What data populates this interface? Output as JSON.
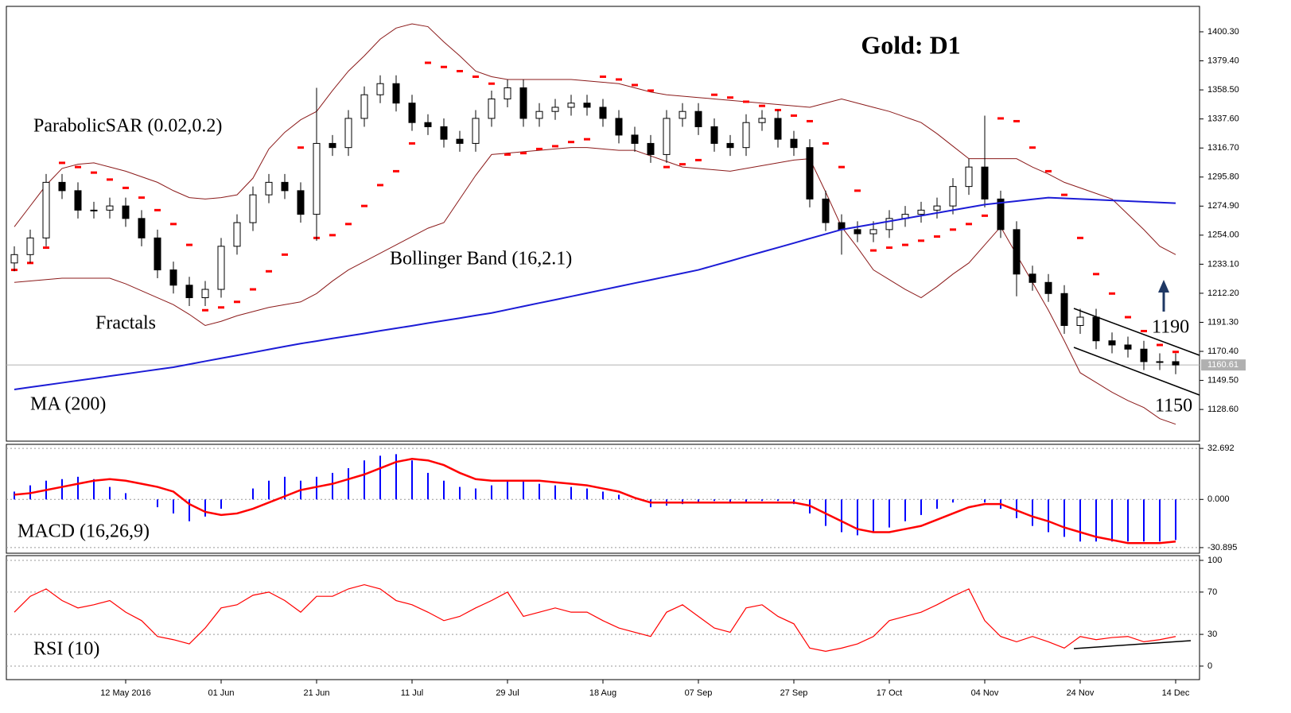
{
  "chart_data": [
    {
      "type": "candlestick",
      "title": "Gold: D1",
      "categories": [
        null,
        null,
        null,
        null,
        null,
        null,
        null,
        "12 May 2016",
        null,
        null,
        null,
        null,
        null,
        "01 Jun",
        null,
        null,
        null,
        null,
        null,
        "21 Jun",
        null,
        null,
        null,
        null,
        null,
        "11 Jul",
        null,
        null,
        null,
        null,
        null,
        "29 Jul",
        null,
        null,
        null,
        null,
        null,
        "18 Aug",
        null,
        null,
        null,
        null,
        null,
        "07 Sep",
        null,
        null,
        null,
        null,
        null,
        "27 Sep",
        null,
        null,
        null,
        null,
        null,
        "17 Oct",
        null,
        null,
        null,
        null,
        null,
        "04 Nov",
        null,
        null,
        null,
        null,
        null,
        "24 Nov",
        null,
        null,
        null,
        null,
        null,
        "14 Dec"
      ],
      "open": [
        1234,
        1240,
        1252,
        1292,
        1286,
        1272,
        1272,
        1275,
        1266,
        1252,
        1229,
        1218,
        1209,
        1215,
        1246,
        1263,
        1283,
        1292,
        1286,
        1269,
        1320,
        1317,
        1338,
        1355,
        1363,
        1349,
        1335,
        1332,
        1323,
        1320,
        1338,
        1352,
        1360,
        1338,
        1343,
        1346,
        1349,
        1346,
        1338,
        1326,
        1320,
        1312,
        1338,
        1343,
        1332,
        1320,
        1317,
        1335,
        1338,
        1323,
        1317,
        1280,
        1263,
        1258,
        1255,
        1258,
        1266,
        1269,
        1272,
        1275,
        1289,
        1303,
        1280,
        1258,
        1226,
        1220,
        1212,
        1189,
        1195,
        1178,
        1175,
        1172,
        1163,
        1163
      ],
      "high": [
        1246,
        1258,
        1298,
        1298,
        1292,
        1278,
        1281,
        1281,
        1272,
        1258,
        1235,
        1224,
        1221,
        1252,
        1269,
        1289,
        1298,
        1298,
        1292,
        1360,
        1326,
        1344,
        1361,
        1369,
        1369,
        1355,
        1341,
        1338,
        1329,
        1344,
        1358,
        1366,
        1366,
        1349,
        1352,
        1355,
        1355,
        1352,
        1344,
        1332,
        1326,
        1344,
        1349,
        1349,
        1338,
        1326,
        1341,
        1344,
        1344,
        1329,
        1323,
        1286,
        1269,
        1264,
        1264,
        1272,
        1275,
        1278,
        1281,
        1295,
        1309,
        1340,
        1286,
        1264,
        1232,
        1226,
        1218,
        1201,
        1201,
        1184,
        1181,
        1178,
        1169,
        1169
      ],
      "low": [
        1228,
        1234,
        1246,
        1280,
        1266,
        1266,
        1266,
        1260,
        1246,
        1223,
        1212,
        1203,
        1203,
        1209,
        1240,
        1257,
        1277,
        1280,
        1263,
        1250,
        1311,
        1311,
        1332,
        1349,
        1343,
        1329,
        1326,
        1317,
        1314,
        1314,
        1332,
        1346,
        1332,
        1332,
        1337,
        1340,
        1340,
        1332,
        1320,
        1314,
        1306,
        1306,
        1332,
        1326,
        1314,
        1311,
        1311,
        1329,
        1317,
        1311,
        1274,
        1257,
        1240,
        1249,
        1249,
        1252,
        1260,
        1263,
        1266,
        1269,
        1283,
        1274,
        1252,
        1210,
        1214,
        1206,
        1183,
        1183,
        1172,
        1169,
        1166,
        1157,
        1157,
        1154
      ],
      "close": [
        1240,
        1252,
        1292,
        1286,
        1272,
        1272,
        1275,
        1266,
        1252,
        1229,
        1218,
        1209,
        1215,
        1246,
        1263,
        1283,
        1292,
        1286,
        1269,
        1320,
        1317,
        1338,
        1355,
        1363,
        1349,
        1335,
        1332,
        1323,
        1320,
        1338,
        1352,
        1360,
        1338,
        1343,
        1346,
        1349,
        1346,
        1338,
        1326,
        1320,
        1312,
        1338,
        1343,
        1332,
        1320,
        1317,
        1335,
        1338,
        1323,
        1317,
        1280,
        1263,
        1258,
        1255,
        1258,
        1266,
        1269,
        1272,
        1275,
        1289,
        1303,
        1280,
        1258,
        1226,
        1220,
        1212,
        1189,
        1195,
        1178,
        1175,
        1172,
        1163,
        1163,
        1160.61
      ],
      "up_color": "#ffffff",
      "down_color": "#000000",
      "last_price": 1160.61,
      "ma": {
        "label": "MA (200)",
        "color": "#1c1cd6",
        "values": [
          1143,
          1144.6,
          1146.2,
          1147.8,
          1149.4,
          1151,
          1152.6,
          1154.2,
          1155.8,
          1157.4,
          1159,
          1161.1,
          1163.3,
          1165.4,
          1167.5,
          1169.6,
          1171.8,
          1173.9,
          1176,
          1177.8,
          1179.7,
          1181.5,
          1183.3,
          1185.2,
          1187,
          1188.8,
          1190.7,
          1192.5,
          1194.3,
          1196.2,
          1198,
          1200.4,
          1202.8,
          1205.2,
          1207.5,
          1209.9,
          1212.3,
          1214.7,
          1217.1,
          1219.5,
          1221.8,
          1224.2,
          1226.6,
          1229,
          1232.2,
          1235.4,
          1238.7,
          1241.9,
          1245.1,
          1248.3,
          1251.6,
          1254.8,
          1258,
          1260,
          1262,
          1264,
          1266,
          1268,
          1270,
          1272,
          1274,
          1276,
          1277.3,
          1278.5,
          1279.8,
          1281,
          1280.5,
          1280,
          1279.5,
          1279,
          1278.5,
          1278,
          1277.5,
          1277
        ]
      },
      "bollinger": {
        "label": "Bollinger Band (16,2.1)",
        "color": "#8b1a1a",
        "upper": [
          1260,
          1275,
          1290,
          1302,
          1305,
          1306,
          1303,
          1300,
          1296,
          1292,
          1286,
          1281,
          1280,
          1281,
          1283,
          1295,
          1316,
          1328,
          1337,
          1343,
          1358,
          1372,
          1383,
          1395,
          1403,
          1406,
          1404,
          1393,
          1383,
          1372,
          1368,
          1366,
          1366,
          1366,
          1366,
          1366,
          1365,
          1364,
          1363,
          1360,
          1357,
          1355,
          1354,
          1353,
          1352,
          1351,
          1350,
          1349,
          1348,
          1347,
          1346,
          1349,
          1352,
          1349,
          1346,
          1343,
          1339,
          1335,
          1327,
          1318,
          1309,
          1309,
          1309,
          1309,
          1303,
          1298,
          1292,
          1288,
          1284,
          1280,
          1269,
          1258,
          1246,
          1240
        ],
        "lower": [
          1220,
          1221,
          1222,
          1223,
          1223,
          1223,
          1223,
          1219,
          1214,
          1209,
          1204,
          1197,
          1189,
          1192,
          1196,
          1199,
          1202,
          1204,
          1206,
          1212,
          1221,
          1229,
          1235,
          1241,
          1247,
          1253,
          1259,
          1263,
          1280,
          1297,
          1312,
          1313,
          1314,
          1315,
          1316,
          1317,
          1317,
          1316,
          1315,
          1315,
          1311,
          1307,
          1303,
          1302,
          1301,
          1300,
          1302,
          1304,
          1306,
          1308,
          1309,
          1285,
          1260,
          1245,
          1229,
          1222,
          1215,
          1209,
          1217,
          1226,
          1234,
          1247,
          1260,
          1240,
          1220,
          1200,
          1178,
          1155,
          1148,
          1141,
          1135,
          1130,
          1122,
          1118
        ]
      },
      "sar": {
        "label": "ParabolicSAR (0.02,0.2)",
        "color": "#ff0000",
        "values": [
          1229,
          1234,
          1245,
          1306,
          1303,
          1299,
          1294,
          1288,
          1281,
          1272,
          1262,
          1247,
          1200,
          1202,
          1206,
          1215,
          1228,
          1240,
          1317,
          1252,
          1254,
          1262,
          1275,
          1290,
          1300,
          1320,
          1378,
          1375,
          1372,
          1368,
          1363,
          1312,
          1313,
          1316,
          1318,
          1321,
          1323,
          1368,
          1366,
          1362,
          1358,
          1303,
          1305,
          1308,
          1355,
          1353,
          1350,
          1347,
          1344,
          1340,
          1336,
          1320,
          1303,
          1286,
          1243,
          1245,
          1247,
          1250,
          1253,
          1258,
          1262,
          1268,
          1338,
          1336,
          1317,
          1300,
          1283,
          1252,
          1226,
          1212,
          1195,
          1185,
          1175,
          1170
        ]
      },
      "fractals": {
        "label": "Fractals"
      },
      "levels": [
        1190,
        1150
      ],
      "ylim": [
        1105.8,
        1418.6
      ],
      "yticks": [
        {
          "value": 1400.3,
          "label": "1400.30"
        },
        {
          "value": 1379.4,
          "label": "1379.40"
        },
        {
          "value": 1358.5,
          "label": "1358.50"
        },
        {
          "value": 1337.6,
          "label": "1337.60"
        },
        {
          "value": 1316.7,
          "label": "1316.70"
        },
        {
          "value": 1295.8,
          "label": "1295.80"
        },
        {
          "value": 1274.9,
          "label": "1274.90"
        },
        {
          "value": 1254,
          "label": "1254.00"
        },
        {
          "value": 1233.1,
          "label": "1233.10"
        },
        {
          "value": 1212.2,
          "label": "1212.20"
        },
        {
          "value": 1191.3,
          "label": "1191.30"
        },
        {
          "value": 1170.4,
          "label": "1170.40"
        },
        {
          "value": 1149.5,
          "label": "1149.50"
        },
        {
          "value": 1128.6,
          "label": "1128.60"
        }
      ],
      "grid": false
    },
    {
      "type": "macd",
      "label": "MACD (16,26,9)",
      "histogram": {
        "color": "#0000ff",
        "values": [
          5,
          9,
          12,
          13,
          14.5,
          13,
          8,
          4,
          0,
          -5,
          -9,
          -14,
          -11,
          -6,
          0,
          7,
          12,
          14.5,
          12,
          14.5,
          17,
          20,
          25,
          28,
          29,
          25,
          17,
          12,
          8,
          7,
          9,
          12,
          12,
          10,
          9,
          8,
          7,
          5,
          3,
          0,
          -5,
          -4,
          -3,
          -2,
          -1,
          -2,
          -2,
          -1,
          -1,
          -3,
          -9,
          -17,
          -21,
          -23,
          -21,
          -18,
          -14,
          -10,
          -6,
          -2,
          0,
          -2,
          -6,
          -12,
          -17,
          -21,
          -24,
          -27,
          -27,
          -27,
          -27,
          -27,
          -27,
          -26
        ]
      },
      "signal": {
        "color": "#ff0000",
        "values": [
          3,
          4,
          6,
          8,
          10,
          12,
          13,
          12,
          10,
          8,
          5,
          -3,
          -8,
          -10,
          -9,
          -6,
          -2,
          2,
          6,
          8,
          10,
          13,
          16,
          20,
          24,
          26,
          25,
          22,
          17,
          13,
          12,
          12,
          12,
          12,
          11,
          10,
          9,
          7,
          5,
          1,
          -2,
          -2,
          -2,
          -2,
          -2,
          -2,
          -2,
          -2,
          -2,
          -2,
          -4,
          -9,
          -14,
          -19,
          -21,
          -21,
          -19,
          -17,
          -13,
          -9,
          -5,
          -3,
          -3,
          -7,
          -11,
          -14,
          -18,
          -21,
          -24,
          -26,
          -28,
          -28,
          -28,
          -27
        ]
      },
      "ylim": [
        -34.5,
        35.3
      ],
      "yticks": [
        32.692,
        {
          "value": 0,
          "label": "0.000"
        },
        -30.895
      ],
      "grid": true
    },
    {
      "type": "line",
      "label": "RSI (10)",
      "color": "#ff0000",
      "values": [
        51,
        66,
        73,
        62,
        55,
        58,
        62,
        51,
        43,
        28,
        25,
        21,
        36,
        55,
        58,
        67,
        70,
        62,
        51,
        66,
        66,
        73,
        77,
        73,
        62,
        58,
        51,
        43,
        47,
        55,
        62,
        70,
        47,
        51,
        55,
        51,
        51,
        43,
        36,
        32,
        28,
        51,
        58,
        47,
        36,
        32,
        55,
        58,
        47,
        40,
        17,
        14,
        17,
        21,
        28,
        43,
        47,
        51,
        58,
        66,
        73,
        43,
        28,
        23,
        28,
        23,
        17,
        28,
        25,
        27,
        28,
        23,
        25,
        28
      ],
      "ylim": [
        -12.8,
        104.5
      ],
      "yticks": [
        100,
        70,
        30,
        0
      ],
      "grid": true
    }
  ]
}
